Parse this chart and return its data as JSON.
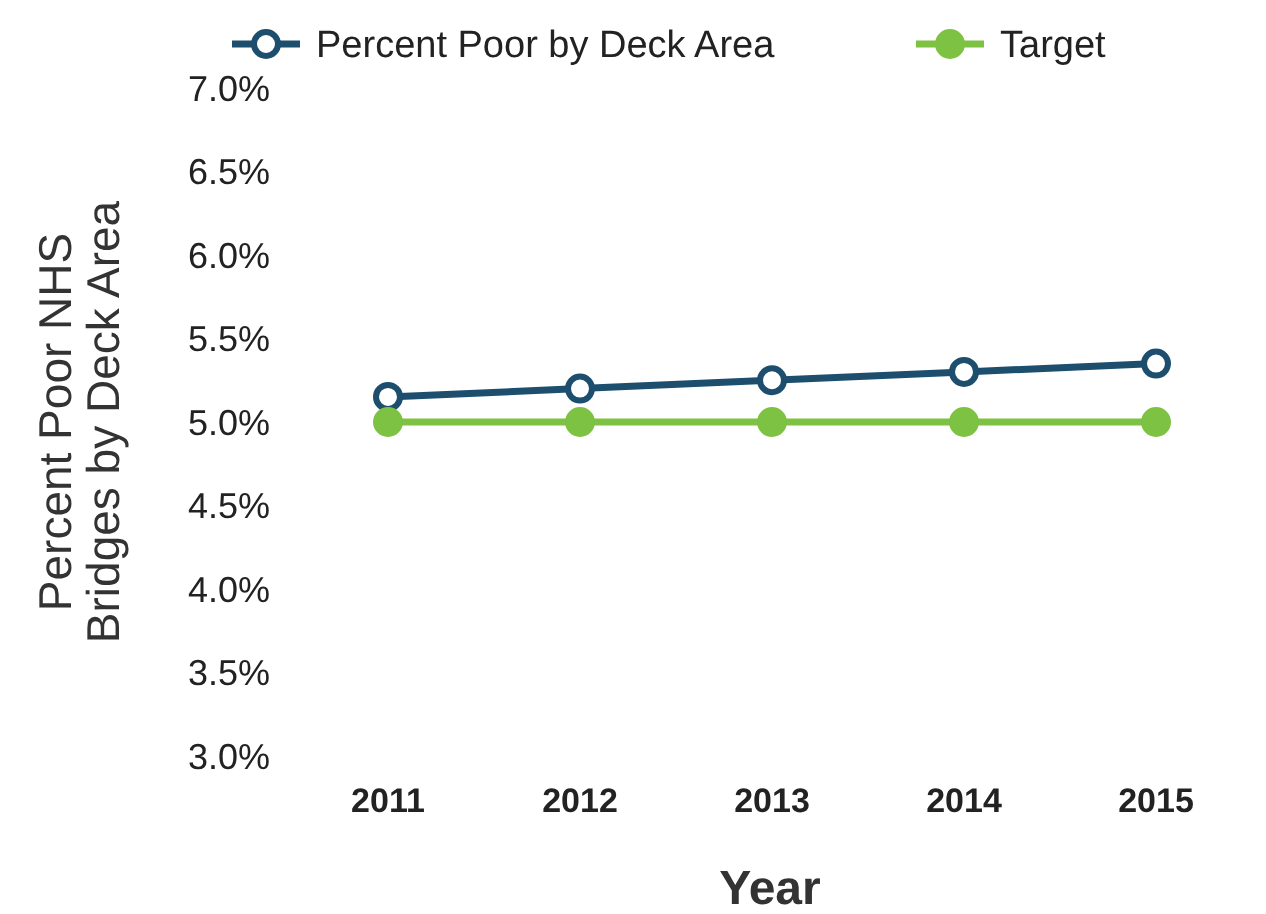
{
  "chart_data": {
    "type": "line",
    "xlabel": "Year",
    "ylabel": "Percent Poor NHS Bridges by Deck Area",
    "categories": [
      "2011",
      "2012",
      "2013",
      "2014",
      "2015"
    ],
    "series": [
      {
        "name": "Percent Poor by Deck Area",
        "color": "#1d4e6e",
        "values": [
          5.15,
          5.2,
          5.25,
          5.3,
          5.35
        ]
      },
      {
        "name": "Target",
        "color": "#7dc242",
        "values": [
          5.0,
          5.0,
          5.0,
          5.0,
          5.0
        ]
      }
    ],
    "ylim": [
      3,
      7
    ],
    "yticks": [
      {
        "value": 3,
        "label": "3.0%"
      },
      {
        "value": 3.5,
        "label": "3.5%"
      },
      {
        "value": 4,
        "label": "4.0%"
      },
      {
        "value": 4.5,
        "label": "4.5%"
      },
      {
        "value": 5,
        "label": "5.0%"
      },
      {
        "value": 5.5,
        "label": "5.5%"
      },
      {
        "value": 6,
        "label": "6.0%"
      },
      {
        "value": 6.5,
        "label": "6.5%"
      },
      {
        "value": 7,
        "label": "7.0%"
      }
    ],
    "grid": false,
    "legend": "top",
    "marker": "circle",
    "line_style": "solid"
  }
}
